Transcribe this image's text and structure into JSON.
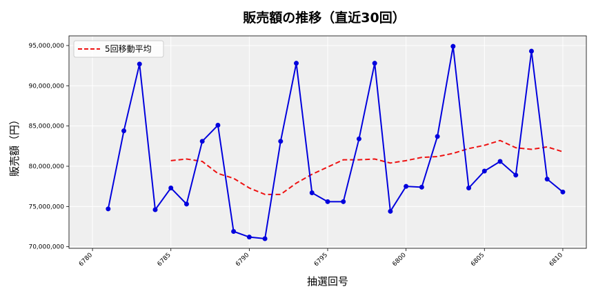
{
  "chart_data": {
    "type": "line",
    "title": "販売額の推移（直近30回）",
    "xlabel": "抽選回号",
    "ylabel": "販売額（円）",
    "xlim": [
      6778.5,
      6811.5
    ],
    "ylim": [
      69800000,
      96200000
    ],
    "xticks": [
      6780,
      6785,
      6790,
      6795,
      6800,
      6805,
      6810
    ],
    "yticks": [
      70000000,
      75000000,
      80000000,
      85000000,
      90000000,
      95000000
    ],
    "ytick_labels": [
      "70,000,000",
      "75,000,000",
      "80,000,000",
      "85,000,000",
      "90,000,000",
      "95,000,000"
    ],
    "grid": true,
    "legend_position": "top-left",
    "series": [
      {
        "name": "販売額",
        "color": "#0000dd",
        "style": "solid-with-markers",
        "x": [
          6781,
          6782,
          6783,
          6784,
          6785,
          6786,
          6787,
          6788,
          6789,
          6790,
          6791,
          6792,
          6793,
          6794,
          6795,
          6796,
          6797,
          6798,
          6799,
          6800,
          6801,
          6802,
          6803,
          6804,
          6805,
          6806,
          6807,
          6808,
          6809,
          6810
        ],
        "values": [
          74700000,
          84400000,
          92700000,
          74600000,
          77300000,
          75300000,
          83100000,
          85100000,
          71900000,
          71200000,
          71000000,
          83100000,
          92800000,
          76700000,
          75600000,
          75600000,
          83400000,
          92800000,
          74400000,
          77500000,
          77400000,
          83700000,
          94900000,
          77300000,
          79400000,
          80600000,
          78900000,
          94300000,
          78400000,
          76800000
        ]
      },
      {
        "name": "5回移動平均",
        "color": "#ee1111",
        "style": "dashed",
        "x": [
          6785,
          6786,
          6787,
          6788,
          6789,
          6790,
          6791,
          6792,
          6793,
          6794,
          6795,
          6796,
          6797,
          6798,
          6799,
          6800,
          6801,
          6802,
          6803,
          6804,
          6805,
          6806,
          6807,
          6808,
          6809,
          6810
        ],
        "values": [
          80700000,
          80900000,
          80600000,
          79100000,
          78500000,
          77300000,
          76500000,
          76500000,
          77900000,
          79000000,
          79900000,
          80800000,
          80800000,
          80900000,
          80400000,
          80700000,
          81100000,
          81200000,
          81600000,
          82200000,
          82600000,
          83200000,
          82300000,
          82100000,
          82400000,
          81800000
        ]
      }
    ]
  }
}
